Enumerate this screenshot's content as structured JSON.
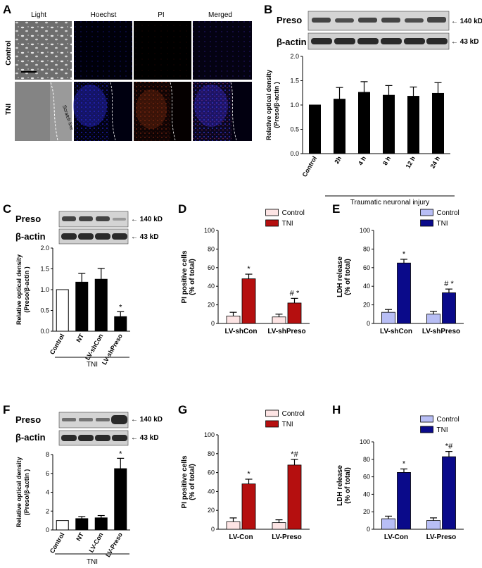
{
  "panels": {
    "A": {
      "letter": "A",
      "col_labels": [
        "Light",
        "Hoechst",
        "PI",
        "Merged"
      ],
      "row_labels": [
        "Control",
        "TNI"
      ],
      "scratch_label": "Scratch line"
    },
    "B": {
      "letter": "B",
      "blot": {
        "rows": [
          "Preso",
          "β-actin"
        ],
        "sizes": [
          "← 140 kD",
          "← 43 kD"
        ]
      },
      "group_label": "Traumatic neuronal injury"
    },
    "C": {
      "letter": "C",
      "blot": {
        "rows": [
          "Preso",
          "β-actin"
        ],
        "sizes": [
          "← 140 kD",
          "← 43 kD"
        ]
      },
      "group_label": "TNI"
    },
    "D": {
      "letter": "D"
    },
    "E": {
      "letter": "E"
    },
    "F": {
      "letter": "F",
      "blot": {
        "rows": [
          "Preso",
          "β-actin"
        ],
        "sizes": [
          "← 140 kD",
          "← 43 kD"
        ]
      },
      "group_label": "TNI"
    },
    "G": {
      "letter": "G"
    },
    "H": {
      "letter": "H"
    }
  },
  "chart_data": [
    {
      "panel": "B",
      "type": "bar",
      "categories": [
        "Control",
        "2h",
        "4 h",
        "8 h",
        "12 h",
        "24 h"
      ],
      "values": [
        1.0,
        1.12,
        1.26,
        1.2,
        1.18,
        1.24
      ],
      "errors": [
        0,
        0.24,
        0.22,
        0.2,
        0.19,
        0.22
      ],
      "ylabel": "Relative optical density\n(Preso/β-actin )",
      "ylim": [
        0,
        2.0
      ],
      "yticks": [
        "0.0",
        "0.5",
        "1.0",
        "1.5",
        "2.0"
      ],
      "bar_color": "#000000"
    },
    {
      "panel": "C",
      "type": "bar",
      "categories": [
        "Control",
        "NT",
        "LV-shCon",
        "LV-shPreso"
      ],
      "values": [
        1.0,
        1.18,
        1.25,
        0.35
      ],
      "errors": [
        0,
        0.21,
        0.26,
        0.12
      ],
      "annotations": [
        "",
        "",
        "",
        "*"
      ],
      "ylabel": "Relative optical density\n(Preso/β-actin )",
      "ylim": [
        0,
        2.0
      ],
      "yticks": [
        "0.0",
        "0.5",
        "1.0",
        "1.5",
        "2.0"
      ],
      "bar_colors": [
        "#ffffff",
        "#000000",
        "#000000",
        "#000000"
      ]
    },
    {
      "panel": "D",
      "type": "bar",
      "categories": [
        "LV-shCon",
        "LV-shPreso"
      ],
      "series": [
        {
          "name": "Control",
          "values": [
            8,
            7
          ],
          "errors": [
            4,
            3
          ],
          "color": "#fde4e4"
        },
        {
          "name": "TNI",
          "values": [
            48,
            22
          ],
          "errors": [
            5,
            5
          ],
          "color": "#b50f0f"
        }
      ],
      "annotations": {
        "TNI": [
          "*",
          "# *"
        ]
      },
      "ylabel": "PI positive cells\n(% of total)",
      "ylim": [
        0,
        100
      ],
      "yticks": [
        "0",
        "20",
        "40",
        "60",
        "80",
        "100"
      ],
      "legend": "top"
    },
    {
      "panel": "E",
      "type": "bar",
      "categories": [
        "LV-shCon",
        "LV-shPreso"
      ],
      "series": [
        {
          "name": "Control",
          "values": [
            12,
            10
          ],
          "errors": [
            3,
            3
          ],
          "color": "#b8bef5"
        },
        {
          "name": "TNI",
          "values": [
            65,
            33
          ],
          "errors": [
            4,
            4
          ],
          "color": "#0a0a8a"
        }
      ],
      "annotations": {
        "TNI": [
          "*",
          "# *"
        ]
      },
      "ylabel": "LDH release\n(% of total)",
      "ylim": [
        0,
        100
      ],
      "yticks": [
        "0",
        "20",
        "40",
        "60",
        "80",
        "100"
      ],
      "legend": "top"
    },
    {
      "panel": "F",
      "type": "bar",
      "categories": [
        "Control",
        "NT",
        "LV-Con",
        "LV-Preso"
      ],
      "values": [
        1.0,
        1.2,
        1.28,
        6.5
      ],
      "errors": [
        0,
        0.22,
        0.25,
        1.1
      ],
      "annotations": [
        "",
        "",
        "",
        "*"
      ],
      "ylabel": "Relative optical density\n(Preso/β-actin )",
      "ylim": [
        0,
        8
      ],
      "yticks": [
        "0",
        "2",
        "4",
        "6",
        "8"
      ],
      "bar_colors": [
        "#ffffff",
        "#000000",
        "#000000",
        "#000000"
      ]
    },
    {
      "panel": "G",
      "type": "bar",
      "categories": [
        "LV-Con",
        "LV-Preso"
      ],
      "series": [
        {
          "name": "Control",
          "values": [
            8,
            7
          ],
          "errors": [
            4,
            3
          ],
          "color": "#fde4e4"
        },
        {
          "name": "TNI",
          "values": [
            48,
            68
          ],
          "errors": [
            5,
            6
          ],
          "color": "#b50f0f"
        }
      ],
      "annotations": {
        "TNI": [
          "*",
          "*#"
        ]
      },
      "ylabel": "PI positive cells\n(% of total)",
      "ylim": [
        0,
        100
      ],
      "yticks": [
        "0",
        "20",
        "40",
        "60",
        "80",
        "100"
      ],
      "legend": "top"
    },
    {
      "panel": "H",
      "type": "bar",
      "categories": [
        "LV-Con",
        "LV-Preso"
      ],
      "series": [
        {
          "name": "Control",
          "values": [
            12,
            10
          ],
          "errors": [
            3,
            3
          ],
          "color": "#b8bef5"
        },
        {
          "name": "TNI",
          "values": [
            65,
            83
          ],
          "errors": [
            4,
            6
          ],
          "color": "#0a0a8a"
        }
      ],
      "annotations": {
        "TNI": [
          "*",
          "*#"
        ]
      },
      "ylabel": "LDH release\n(% of total)",
      "ylim": [
        0,
        100
      ],
      "yticks": [
        "0",
        "20",
        "40",
        "60",
        "80",
        "100"
      ],
      "legend": "top"
    }
  ]
}
